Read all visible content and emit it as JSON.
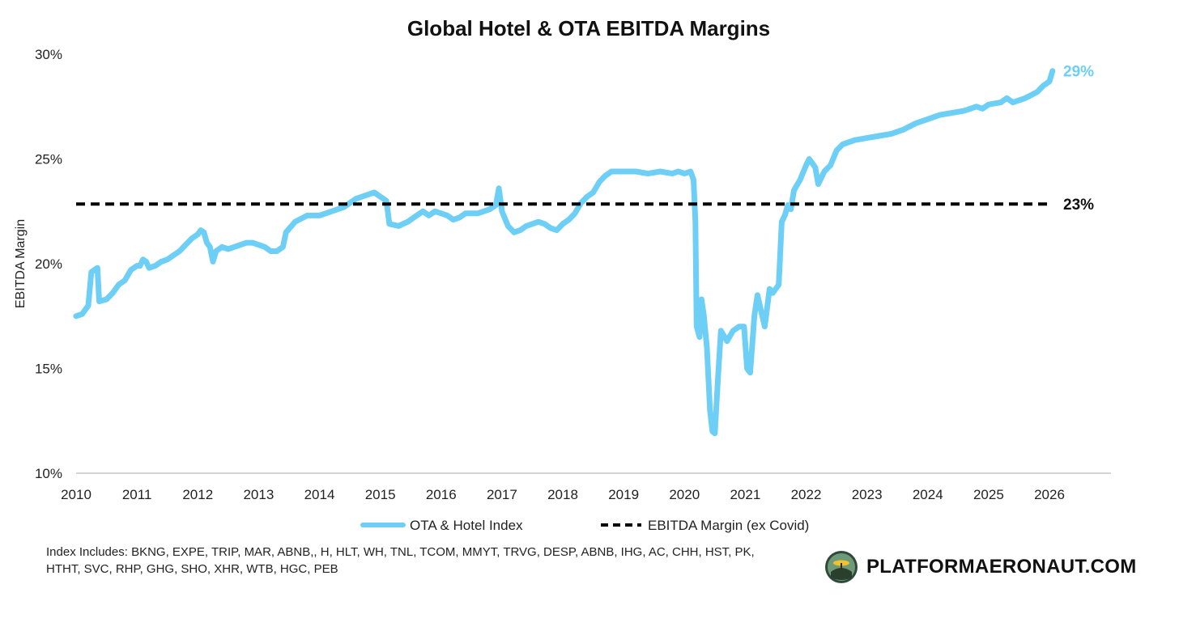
{
  "chart_data": {
    "type": "line",
    "title": "Global Hotel & OTA EBITDA Margins",
    "xlabel": "",
    "ylabel": "EBITDA Margin",
    "ylim": [
      10,
      30
    ],
    "xlim": [
      2010,
      2026.9
    ],
    "y_ticks": [
      "10%",
      "15%",
      "20%",
      "25%",
      "30%"
    ],
    "x_ticks": [
      "2010",
      "2011",
      "2012",
      "2013",
      "2014",
      "2015",
      "2016",
      "2017",
      "2018",
      "2019",
      "2020",
      "2021",
      "2022",
      "2023",
      "2024",
      "2025",
      "2026"
    ],
    "series": [
      {
        "name": "OTA & Hotel Index",
        "color": "#6ECFF6",
        "style": "solid",
        "end_label": "29%",
        "points": [
          [
            2010.0,
            17.5
          ],
          [
            2010.1,
            17.6
          ],
          [
            2010.2,
            18.0
          ],
          [
            2010.25,
            19.6
          ],
          [
            2010.3,
            19.7
          ],
          [
            2010.35,
            19.8
          ],
          [
            2010.38,
            18.2
          ],
          [
            2010.5,
            18.3
          ],
          [
            2010.6,
            18.6
          ],
          [
            2010.7,
            19.0
          ],
          [
            2010.8,
            19.2
          ],
          [
            2010.9,
            19.7
          ],
          [
            2011.0,
            19.9
          ],
          [
            2011.05,
            19.9
          ],
          [
            2011.1,
            20.2
          ],
          [
            2011.15,
            20.1
          ],
          [
            2011.2,
            19.8
          ],
          [
            2011.3,
            19.9
          ],
          [
            2011.4,
            20.1
          ],
          [
            2011.5,
            20.2
          ],
          [
            2011.6,
            20.4
          ],
          [
            2011.7,
            20.6
          ],
          [
            2011.8,
            20.9
          ],
          [
            2011.9,
            21.2
          ],
          [
            2012.0,
            21.4
          ],
          [
            2012.05,
            21.6
          ],
          [
            2012.1,
            21.5
          ],
          [
            2012.15,
            21.0
          ],
          [
            2012.2,
            20.8
          ],
          [
            2012.25,
            20.1
          ],
          [
            2012.3,
            20.6
          ],
          [
            2012.4,
            20.8
          ],
          [
            2012.5,
            20.7
          ],
          [
            2012.6,
            20.8
          ],
          [
            2012.7,
            20.9
          ],
          [
            2012.8,
            21.0
          ],
          [
            2012.9,
            21.0
          ],
          [
            2013.0,
            20.9
          ],
          [
            2013.1,
            20.8
          ],
          [
            2013.2,
            20.6
          ],
          [
            2013.3,
            20.6
          ],
          [
            2013.4,
            20.8
          ],
          [
            2013.45,
            21.5
          ],
          [
            2013.6,
            22.0
          ],
          [
            2013.8,
            22.3
          ],
          [
            2014.0,
            22.3
          ],
          [
            2014.2,
            22.5
          ],
          [
            2014.4,
            22.7
          ],
          [
            2014.5,
            22.9
          ],
          [
            2014.6,
            23.1
          ],
          [
            2014.8,
            23.3
          ],
          [
            2014.9,
            23.4
          ],
          [
            2015.0,
            23.2
          ],
          [
            2015.1,
            23.0
          ],
          [
            2015.15,
            21.9
          ],
          [
            2015.3,
            21.8
          ],
          [
            2015.45,
            22.0
          ],
          [
            2015.6,
            22.3
          ],
          [
            2015.7,
            22.5
          ],
          [
            2015.8,
            22.3
          ],
          [
            2015.9,
            22.5
          ],
          [
            2016.0,
            22.4
          ],
          [
            2016.1,
            22.3
          ],
          [
            2016.2,
            22.1
          ],
          [
            2016.3,
            22.2
          ],
          [
            2016.4,
            22.4
          ],
          [
            2016.5,
            22.4
          ],
          [
            2016.6,
            22.4
          ],
          [
            2016.7,
            22.5
          ],
          [
            2016.8,
            22.6
          ],
          [
            2016.9,
            22.8
          ],
          [
            2016.95,
            23.6
          ],
          [
            2017.0,
            22.5
          ],
          [
            2017.1,
            21.8
          ],
          [
            2017.2,
            21.5
          ],
          [
            2017.3,
            21.6
          ],
          [
            2017.4,
            21.8
          ],
          [
            2017.5,
            21.9
          ],
          [
            2017.6,
            22.0
          ],
          [
            2017.7,
            21.9
          ],
          [
            2017.8,
            21.7
          ],
          [
            2017.9,
            21.6
          ],
          [
            2018.0,
            21.9
          ],
          [
            2018.1,
            22.1
          ],
          [
            2018.2,
            22.4
          ],
          [
            2018.3,
            22.9
          ],
          [
            2018.4,
            23.2
          ],
          [
            2018.5,
            23.4
          ],
          [
            2018.6,
            23.9
          ],
          [
            2018.7,
            24.2
          ],
          [
            2018.8,
            24.4
          ],
          [
            2018.9,
            24.4
          ],
          [
            2019.0,
            24.4
          ],
          [
            2019.2,
            24.4
          ],
          [
            2019.4,
            24.3
          ],
          [
            2019.6,
            24.4
          ],
          [
            2019.8,
            24.3
          ],
          [
            2019.9,
            24.4
          ],
          [
            2020.0,
            24.3
          ],
          [
            2020.1,
            24.4
          ],
          [
            2020.15,
            24.0
          ],
          [
            2020.18,
            22.0
          ],
          [
            2020.2,
            17.0
          ],
          [
            2020.25,
            16.5
          ],
          [
            2020.28,
            18.3
          ],
          [
            2020.32,
            17.5
          ],
          [
            2020.37,
            16.0
          ],
          [
            2020.42,
            13.0
          ],
          [
            2020.46,
            12.0
          ],
          [
            2020.5,
            11.9
          ],
          [
            2020.55,
            14.5
          ],
          [
            2020.6,
            16.8
          ],
          [
            2020.7,
            16.3
          ],
          [
            2020.8,
            16.8
          ],
          [
            2020.9,
            17.0
          ],
          [
            2020.98,
            17.0
          ],
          [
            2021.03,
            15.0
          ],
          [
            2021.08,
            14.8
          ],
          [
            2021.15,
            17.5
          ],
          [
            2021.2,
            18.5
          ],
          [
            2021.28,
            17.5
          ],
          [
            2021.32,
            17.0
          ],
          [
            2021.4,
            18.8
          ],
          [
            2021.45,
            18.6
          ],
          [
            2021.5,
            18.8
          ],
          [
            2021.55,
            19.0
          ],
          [
            2021.6,
            22.0
          ],
          [
            2021.65,
            22.3
          ],
          [
            2021.7,
            22.8
          ],
          [
            2021.75,
            22.6
          ],
          [
            2021.8,
            23.5
          ],
          [
            2021.9,
            24.0
          ],
          [
            2022.0,
            24.7
          ],
          [
            2022.05,
            25.0
          ],
          [
            2022.15,
            24.6
          ],
          [
            2022.2,
            23.8
          ],
          [
            2022.3,
            24.4
          ],
          [
            2022.4,
            24.7
          ],
          [
            2022.5,
            25.4
          ],
          [
            2022.6,
            25.7
          ],
          [
            2022.8,
            25.9
          ],
          [
            2023.0,
            26.0
          ],
          [
            2023.2,
            26.1
          ],
          [
            2023.4,
            26.2
          ],
          [
            2023.6,
            26.4
          ],
          [
            2023.8,
            26.7
          ],
          [
            2024.0,
            26.9
          ],
          [
            2024.2,
            27.1
          ],
          [
            2024.4,
            27.2
          ],
          [
            2024.6,
            27.3
          ],
          [
            2024.8,
            27.5
          ],
          [
            2024.9,
            27.4
          ],
          [
            2025.0,
            27.6
          ],
          [
            2025.2,
            27.7
          ],
          [
            2025.3,
            27.9
          ],
          [
            2025.4,
            27.7
          ],
          [
            2025.6,
            27.9
          ],
          [
            2025.8,
            28.2
          ],
          [
            2025.9,
            28.5
          ],
          [
            2026.0,
            28.7
          ],
          [
            2026.05,
            29.2
          ]
        ]
      },
      {
        "name": "EBITDA Margin (ex Covid)",
        "color": "#000000",
        "style": "dashed",
        "end_label": "23%",
        "points": [
          [
            2010.0,
            22.85
          ],
          [
            2026.05,
            22.85
          ]
        ]
      }
    ],
    "legend": "bottom"
  },
  "footnote": {
    "line1": "Index Includes: BKNG, EXPE, TRIP, MAR, ABNB,, H, HLT, WH, TNL, TCOM, MMYT, TRVG, DESP, ABNB, IHG, AC, CHH, HST, PK,",
    "line2": "HTHT, SVC, RHP, GHG, SHO, XHR, WTB, HGC, PEB"
  },
  "brand": {
    "text": "PLATFORMAERONAUT.COM",
    "logo_icon": "platform-aeronaut-logo"
  }
}
